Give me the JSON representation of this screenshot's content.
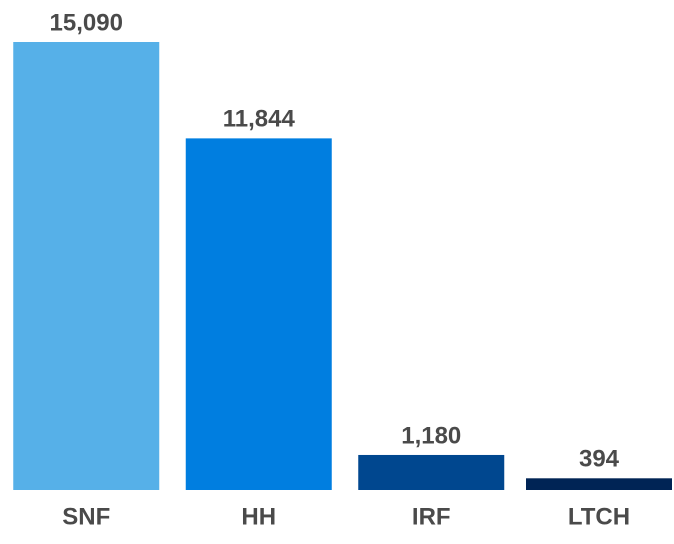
{
  "chart_data": {
    "type": "bar",
    "categories": [
      "SNF",
      "HH",
      "IRF",
      "LTCH"
    ],
    "values": [
      15090,
      11844,
      1180,
      394
    ],
    "value_labels": [
      "15,090",
      "11,844",
      "1,180",
      "394"
    ],
    "colors": [
      "#56b0e8",
      "#007ee0",
      "#00478f",
      "#002455"
    ]
  }
}
